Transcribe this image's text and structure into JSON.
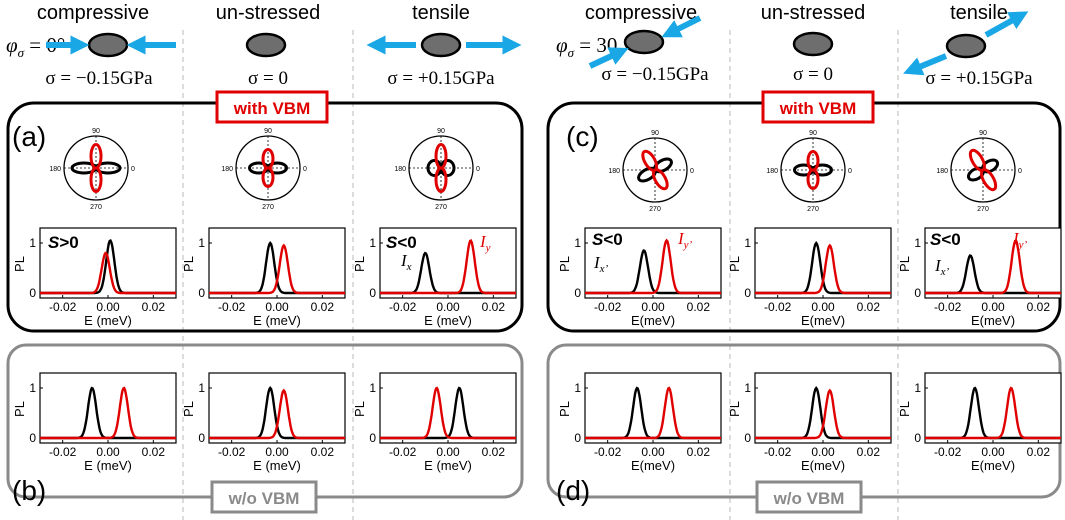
{
  "columns": {
    "left": [
      {
        "header": "compressive",
        "sigma": "σ = −0.15GPa",
        "phi": "φσ = 0°"
      },
      {
        "header": "un-stressed",
        "sigma": "σ = 0"
      },
      {
        "header": "tensile",
        "sigma": "σ = +0.15GPa"
      }
    ],
    "right": [
      {
        "header": "compressive",
        "sigma": "σ = −0.15GPa",
        "phi": "φσ = 30"
      },
      {
        "header": "un-stressed",
        "sigma": "σ = 0"
      },
      {
        "header": "tensile",
        "sigma": "σ = +0.15GPa"
      }
    ]
  },
  "phi": {
    "left": {
      "sym": "φ",
      "sub": "σ",
      "val": " = 0°"
    },
    "right": {
      "sym": "φ",
      "sub": "σ",
      "val": " = 30"
    }
  },
  "panels": {
    "a": {
      "letter": "(a)"
    },
    "b": {
      "letter": "(b)"
    },
    "c": {
      "letter": "(c)"
    },
    "d": {
      "letter": "(d)"
    },
    "with_vbm": "with VBM",
    "without_vbm": "w/o VBM"
  },
  "plot_labels": {
    "ylabel": "PL",
    "xlabel_left": "E (meV)",
    "xlabel_right": "E(meV)",
    "xticks": [
      "-0.02",
      "0.00",
      "0.02"
    ],
    "yticks": [
      "0",
      "1"
    ],
    "polar_angles": [
      "90",
      "0",
      "180",
      "270"
    ]
  },
  "annotations": {
    "s_pos": "S>0",
    "s_neg": "S<0",
    "ix": "x",
    "iy": "y",
    "ixp": "x’",
    "iyp": "y’",
    "I": "I"
  },
  "colors": {
    "black": "#000000",
    "red": "#e00000",
    "blue": "#1aa7e6",
    "gray_box": "#8a8a8a",
    "ellipse": "#6e6e6e"
  },
  "chart_data": [
    {
      "type": "line",
      "panel": "a-compressive",
      "series": [
        {
          "center": 0.001,
          "amp": 1.05
        },
        {
          "center": -0.001,
          "amp": 0.8
        }
      ]
    },
    {
      "type": "line",
      "panel": "a-unstressed",
      "series": [
        {
          "center": -0.003,
          "amp": 1.0
        },
        {
          "center": 0.003,
          "amp": 0.95
        }
      ]
    },
    {
      "type": "line",
      "panel": "a-tensile",
      "series": [
        {
          "center": -0.01,
          "amp": 0.8
        },
        {
          "center": 0.01,
          "amp": 1.05
        }
      ]
    },
    {
      "type": "line",
      "panel": "b-compressive",
      "series": [
        {
          "center": -0.007,
          "amp": 1.0
        },
        {
          "center": 0.007,
          "amp": 1.0
        }
      ]
    },
    {
      "type": "line",
      "panel": "b-unstressed",
      "series": [
        {
          "center": -0.003,
          "amp": 1.0
        },
        {
          "center": 0.003,
          "amp": 0.95
        }
      ]
    },
    {
      "type": "line",
      "panel": "b-tensile",
      "series": [
        {
          "center": 0.005,
          "amp": 1.0
        },
        {
          "center": -0.005,
          "amp": 1.0
        }
      ]
    },
    {
      "type": "line",
      "panel": "c-compressive",
      "series": [
        {
          "center": -0.004,
          "amp": 0.85
        },
        {
          "center": 0.006,
          "amp": 1.05
        }
      ]
    },
    {
      "type": "line",
      "panel": "c-unstressed",
      "series": [
        {
          "center": -0.003,
          "amp": 1.0
        },
        {
          "center": 0.003,
          "amp": 0.95
        }
      ]
    },
    {
      "type": "line",
      "panel": "c-tensile",
      "series": [
        {
          "center": -0.01,
          "amp": 0.75
        },
        {
          "center": 0.01,
          "amp": 1.05
        }
      ]
    },
    {
      "type": "line",
      "panel": "d-compressive",
      "series": [
        {
          "center": -0.007,
          "amp": 1.0
        },
        {
          "center": 0.007,
          "amp": 1.0
        }
      ]
    },
    {
      "type": "line",
      "panel": "d-unstressed",
      "series": [
        {
          "center": -0.003,
          "amp": 1.0
        },
        {
          "center": 0.003,
          "amp": 0.95
        }
      ]
    },
    {
      "type": "line",
      "panel": "d-tensile",
      "series": [
        {
          "center": -0.008,
          "amp": 1.0
        },
        {
          "center": 0.008,
          "amp": 1.0
        }
      ]
    }
  ]
}
